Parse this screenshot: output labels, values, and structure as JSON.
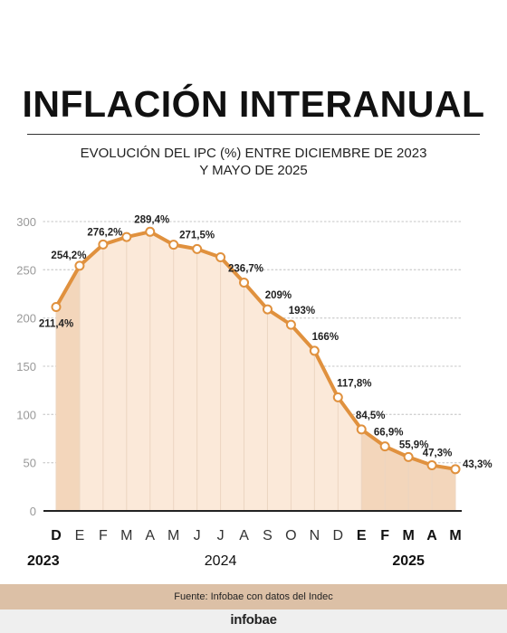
{
  "header": {
    "title": "INFLACIÓN INTERANUAL",
    "subtitle_line1": "EVOLUCIÓN DEL IPC (%) ENTRE DICIEMBRE DE 2023",
    "subtitle_line2": "Y MAYO DE 2025"
  },
  "footer": {
    "source": "Fuente: Infobae con datos del Indec",
    "logo": "infobae"
  },
  "colors": {
    "line": "#e0913e",
    "area": "#fbe9d9",
    "area_highlight": "#f3d6bb",
    "marker_fill": "#ffffff",
    "grid": "#d0d0d0",
    "axis": "#222222",
    "tick_label": "#999999"
  },
  "chart_data": {
    "type": "area",
    "x": [
      "D",
      "E",
      "F",
      "M",
      "A",
      "M",
      "J",
      "J",
      "A",
      "S",
      "O",
      "N",
      "D",
      "E",
      "F",
      "M",
      "A",
      "M"
    ],
    "bold_x_indices": [
      0,
      13,
      14,
      15,
      16,
      17
    ],
    "year_labels": [
      {
        "label": "2023",
        "index": 0
      },
      {
        "label": "2024",
        "index": 7
      },
      {
        "label": "2025",
        "index": 15
      }
    ],
    "series": [
      {
        "values": [
          211.4,
          254.2,
          276.2,
          284,
          289.4,
          276,
          271.5,
          263,
          236.7,
          209,
          193,
          166,
          117.8,
          84.5,
          66.9,
          55.9,
          47.3,
          43.3
        ],
        "labels": [
          "211,4%",
          "254,2%",
          "276,2%",
          "",
          "289,4%",
          "",
          "271,5%",
          "",
          "236,7%",
          "209%",
          "193%",
          "166%",
          "117,8%",
          "84,5%",
          "66,9%",
          "55,9%",
          "47,3%",
          "43,3%"
        ]
      }
    ],
    "highlighted_indices": [
      0,
      13,
      14,
      15,
      16,
      17
    ],
    "y_ticks": [
      0,
      50,
      100,
      150,
      200,
      250,
      300
    ],
    "ylim": [
      0,
      300
    ],
    "grid": true
  }
}
